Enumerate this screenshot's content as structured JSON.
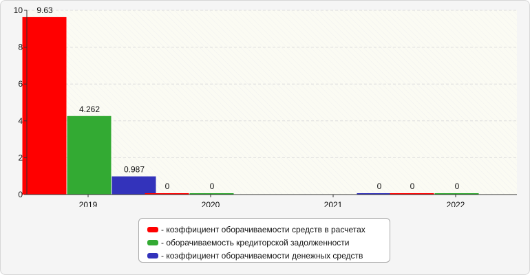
{
  "chart_data": {
    "type": "bar",
    "categories": [
      "2019",
      "2020",
      "2021",
      "2022"
    ],
    "series": [
      {
        "name": "- коэффициент оборачиваемости средств в расчетах",
        "color": "#ff0000",
        "values": [
          9.63,
          0,
          null,
          0
        ]
      },
      {
        "name": "- оборачиваемость кредиторской задолженности",
        "color": "#33aa33",
        "values": [
          4.262,
          0,
          null,
          0
        ]
      },
      {
        "name": "- коэффициент оборачиваемости денежных средств",
        "color": "#3333bb",
        "values": [
          0.987,
          null,
          0,
          null
        ]
      }
    ],
    "y_ticks": [
      "0",
      "2",
      "4",
      "6",
      "8",
      "10"
    ],
    "ylim": [
      0,
      10
    ],
    "grid": true,
    "legend_position": "bottom"
  }
}
